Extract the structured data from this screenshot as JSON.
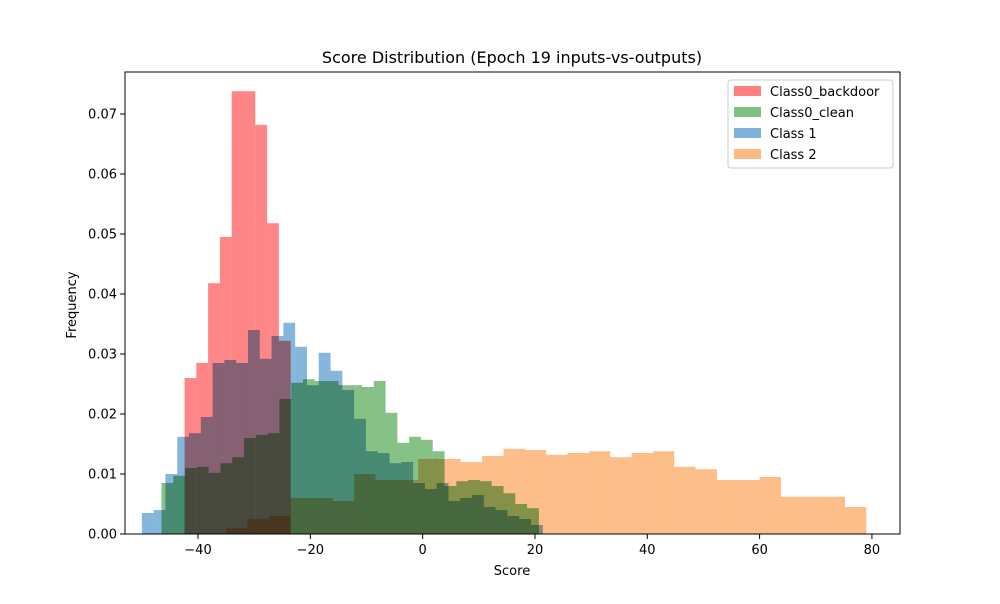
{
  "chart_data": {
    "type": "histogram",
    "title": "Score Distribution (Epoch 19 inputs-vs-outputs)",
    "xlabel": "Score",
    "ylabel": "Frequency",
    "xlim": [
      -53,
      85
    ],
    "ylim": [
      0,
      0.077
    ],
    "xticks": [
      -40,
      -20,
      0,
      20,
      40,
      60,
      80
    ],
    "xtick_labels": [
      "−40",
      "−20",
      "0",
      "20",
      "40",
      "60",
      "80"
    ],
    "yticks": [
      0,
      0.01,
      0.02,
      0.03,
      0.04,
      0.05,
      0.06,
      0.07
    ],
    "ytick_labels": [
      "0.00",
      "0.01",
      "0.02",
      "0.03",
      "0.04",
      "0.05",
      "0.06",
      "0.07"
    ],
    "grid": false,
    "legend_position": "top-right",
    "series": [
      {
        "name": "Class0_backdoor",
        "color": "#ff7f7f",
        "bins": [
          [
            -42.4,
            -40.3,
            0.026
          ],
          [
            -40.3,
            -38.2,
            0.0285
          ],
          [
            -38.2,
            -36.1,
            0.0418
          ],
          [
            -36.1,
            -34.0,
            0.0495
          ],
          [
            -34.0,
            -31.9,
            0.0738
          ],
          [
            -31.9,
            -29.8,
            0.0738
          ],
          [
            -29.8,
            -27.7,
            0.0682
          ],
          [
            -27.7,
            -25.6,
            0.0518
          ],
          [
            -25.6,
            -23.5,
            0.0322
          ]
        ]
      },
      {
        "name": "Class0_clean",
        "color": "#7fbf7f",
        "bins": [
          [
            -46.5,
            -44.4,
            0.0085
          ],
          [
            -44.4,
            -42.3,
            0.0097
          ],
          [
            -42.3,
            -40.2,
            0.011
          ],
          [
            -40.2,
            -38.1,
            0.0112
          ],
          [
            -38.1,
            -36.0,
            0.0102
          ],
          [
            -36.0,
            -33.9,
            0.0118
          ],
          [
            -33.9,
            -31.8,
            0.0128
          ],
          [
            -31.8,
            -29.7,
            0.016
          ],
          [
            -29.7,
            -27.6,
            0.0165
          ],
          [
            -27.6,
            -25.5,
            0.0168
          ],
          [
            -25.5,
            -23.4,
            0.0225
          ],
          [
            -23.4,
            -21.3,
            0.0252
          ],
          [
            -21.3,
            -19.2,
            0.0258
          ],
          [
            -19.2,
            -17.1,
            0.0255
          ],
          [
            -17.1,
            -15.0,
            0.0255
          ],
          [
            -15.0,
            -12.9,
            0.0248
          ],
          [
            -12.9,
            -10.8,
            0.0248
          ],
          [
            -10.8,
            -8.7,
            0.0245
          ],
          [
            -8.7,
            -6.6,
            0.0255
          ],
          [
            -6.6,
            -4.5,
            0.0202
          ],
          [
            -4.5,
            -2.4,
            0.0152
          ],
          [
            -2.4,
            -0.3,
            0.0162
          ],
          [
            -0.3,
            1.8,
            0.0157
          ],
          [
            1.8,
            3.9,
            0.0138
          ],
          [
            3.9,
            6.0,
            0.008
          ],
          [
            6.0,
            8.1,
            0.0088
          ],
          [
            8.1,
            10.2,
            0.009
          ],
          [
            10.2,
            12.3,
            0.0088
          ],
          [
            12.3,
            14.4,
            0.008
          ],
          [
            14.4,
            16.5,
            0.0068
          ],
          [
            16.5,
            18.6,
            0.005
          ],
          [
            18.6,
            20.7,
            0.0043
          ]
        ]
      },
      {
        "name": "Class 1",
        "color": "#7fb2d9",
        "bins": [
          [
            -50.0,
            -47.9,
            0.0035
          ],
          [
            -47.9,
            -45.8,
            0.004
          ],
          [
            -45.8,
            -43.7,
            0.01
          ],
          [
            -43.7,
            -41.6,
            0.0162
          ],
          [
            -41.6,
            -39.5,
            0.0168
          ],
          [
            -39.5,
            -37.4,
            0.0195
          ],
          [
            -37.4,
            -35.3,
            0.0285
          ],
          [
            -35.3,
            -33.2,
            0.029
          ],
          [
            -33.2,
            -31.1,
            0.0285
          ],
          [
            -31.1,
            -29.0,
            0.034
          ],
          [
            -29.0,
            -26.9,
            0.0292
          ],
          [
            -26.9,
            -24.8,
            0.033
          ],
          [
            -24.8,
            -22.7,
            0.0352
          ],
          [
            -22.7,
            -20.6,
            0.0312
          ],
          [
            -20.6,
            -18.5,
            0.0248
          ],
          [
            -18.5,
            -16.4,
            0.0302
          ],
          [
            -16.4,
            -14.3,
            0.0272
          ],
          [
            -14.3,
            -12.2,
            0.024
          ],
          [
            -12.2,
            -10.1,
            0.0192
          ],
          [
            -10.1,
            -8.0,
            0.0138
          ],
          [
            -8.0,
            -5.9,
            0.0135
          ],
          [
            -5.9,
            -3.8,
            0.0118
          ],
          [
            -3.8,
            -1.7,
            0.012
          ],
          [
            -1.7,
            0.4,
            0.0085
          ],
          [
            0.4,
            2.5,
            0.0075
          ],
          [
            2.5,
            4.6,
            0.0085
          ],
          [
            4.6,
            6.7,
            0.0055
          ],
          [
            6.7,
            8.8,
            0.006
          ],
          [
            8.8,
            10.9,
            0.0065
          ],
          [
            10.9,
            13.0,
            0.0045
          ],
          [
            13.0,
            15.1,
            0.004
          ],
          [
            15.1,
            17.2,
            0.003
          ],
          [
            17.2,
            19.3,
            0.0025
          ],
          [
            19.3,
            21.4,
            0.0015
          ]
        ]
      },
      {
        "name": "Class 2",
        "color": "#fdbb84",
        "bins": [
          [
            -35.0,
            -31.2,
            0.001
          ],
          [
            -31.2,
            -27.4,
            0.0025
          ],
          [
            -27.4,
            -23.6,
            0.003
          ],
          [
            -23.6,
            -19.8,
            0.006
          ],
          [
            -19.8,
            -16.0,
            0.006
          ],
          [
            -16.0,
            -12.2,
            0.0055
          ],
          [
            -12.2,
            -8.4,
            0.01
          ],
          [
            -8.4,
            -4.6,
            0.009
          ],
          [
            -4.6,
            -0.8,
            0.009
          ],
          [
            -0.8,
            3.0,
            0.0125
          ],
          [
            3.0,
            6.8,
            0.0125
          ],
          [
            6.8,
            10.6,
            0.012
          ],
          [
            10.6,
            14.4,
            0.013
          ],
          [
            14.4,
            18.2,
            0.0142
          ],
          [
            18.2,
            22.0,
            0.014
          ],
          [
            22.0,
            25.8,
            0.0132
          ],
          [
            25.8,
            29.6,
            0.0135
          ],
          [
            29.6,
            33.4,
            0.0138
          ],
          [
            33.4,
            37.2,
            0.0128
          ],
          [
            37.2,
            41.0,
            0.0135
          ],
          [
            41.0,
            44.8,
            0.0138
          ],
          [
            44.8,
            48.6,
            0.0112
          ],
          [
            48.6,
            52.4,
            0.0108
          ],
          [
            52.4,
            56.2,
            0.009
          ],
          [
            56.2,
            60.0,
            0.009
          ],
          [
            60.0,
            63.8,
            0.0095
          ],
          [
            63.8,
            67.6,
            0.0062
          ],
          [
            67.6,
            71.4,
            0.0062
          ],
          [
            71.4,
            75.2,
            0.0062
          ],
          [
            75.2,
            79.0,
            0.0045
          ]
        ]
      }
    ]
  }
}
